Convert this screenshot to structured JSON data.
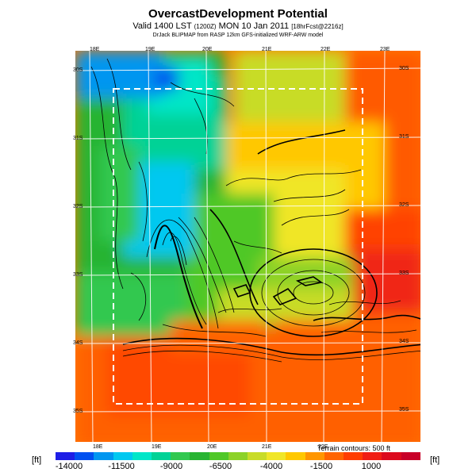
{
  "header": {
    "title": "OvercastDevelopment Potential",
    "valid_prefix": "Valid 1400 LST",
    "valid_utc": "(1200Z)",
    "valid_date": "MON 10 Jan 2011",
    "forecast": "[18hrFcst@2216z]",
    "credit": "DrJack BLIPMAP from RASP 12km GFS-initialized WRF-ARW model"
  },
  "map": {
    "lon_labels_top": [
      "18E",
      "19E",
      "20E",
      "21E",
      "22E",
      "23E"
    ],
    "lon_labels_bottom": [
      "18E",
      "19E",
      "20E",
      "21E",
      "22E"
    ],
    "lat_labels_left": [
      "30S",
      "31S",
      "32S",
      "33S",
      "34S",
      "35S"
    ],
    "lat_labels_right": [
      "30S",
      "31S",
      "32S",
      "33S",
      "34S",
      "35S"
    ],
    "terrain_note": "Terrain contours: 500 ft"
  },
  "colorbar": {
    "unit_left": "[ft]",
    "unit_right": "[ft]",
    "tick_labels": [
      "-14000",
      "-11500",
      "-9000",
      "-6500",
      "-4000",
      "-1500",
      "1000"
    ],
    "colors": [
      "#1e1ee6",
      "#0050f0",
      "#0096f0",
      "#00c8f0",
      "#00e6c8",
      "#00d296",
      "#32c850",
      "#28b432",
      "#50c828",
      "#8cd228",
      "#c8dc28",
      "#f0e628",
      "#ffc800",
      "#ff9600",
      "#ff6400",
      "#ff3c00",
      "#f01e14",
      "#dc0a1e",
      "#c80028"
    ]
  }
}
